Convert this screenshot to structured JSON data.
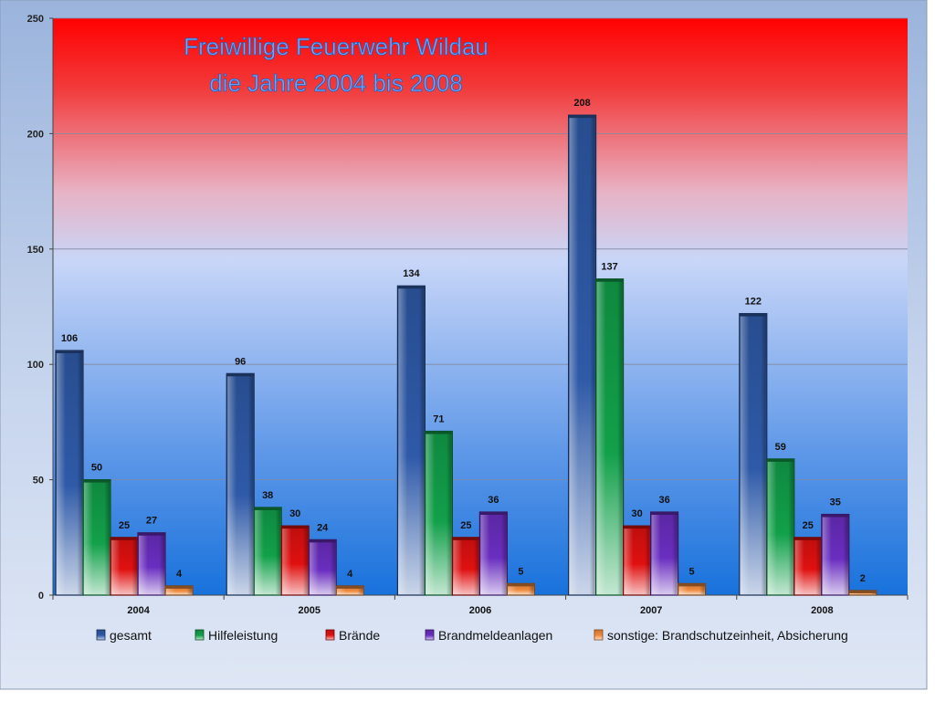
{
  "chart_data": {
    "type": "bar",
    "title": "Freiwillige Feuerwehr Wildau",
    "subtitle": "die Jahre 2004 bis 2008",
    "categories": [
      "2004",
      "2005",
      "2006",
      "2007",
      "2008"
    ],
    "series": [
      {
        "name": "gesamt",
        "color": "#2f5aa8",
        "values": [
          106,
          96,
          134,
          208,
          122
        ]
      },
      {
        "name": "Hilfeleistung",
        "color": "#12a04a",
        "values": [
          50,
          38,
          71,
          137,
          59
        ]
      },
      {
        "name": "Brände",
        "color": "#e01010",
        "values": [
          25,
          30,
          25,
          30,
          25
        ]
      },
      {
        "name": "Brandmeldeanlagen",
        "color": "#6a2ec0",
        "values": [
          27,
          24,
          36,
          36,
          35
        ]
      },
      {
        "name": "sonstige: Brandschutzeinheit, Absicherung",
        "color": "#f08a3c",
        "values": [
          4,
          4,
          5,
          5,
          2
        ]
      }
    ],
    "ylim": [
      0,
      250
    ],
    "yticks": [
      0,
      50,
      100,
      150,
      200,
      250
    ],
    "grid": true,
    "legend": "bottom",
    "background_gradient": [
      "#ff0000",
      "#c8d6f8",
      "#1e78dc"
    ],
    "xlabel": "",
    "ylabel": ""
  }
}
